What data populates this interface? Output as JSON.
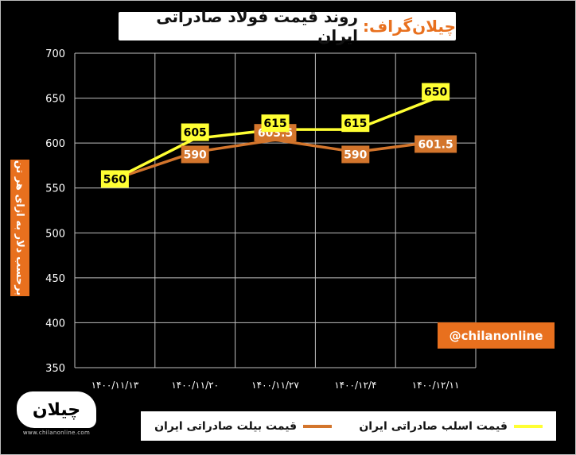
{
  "title": {
    "brand": "چیلان‌گراف:",
    "text": "روند قیمت فولاد صادراتی ایران"
  },
  "watermark": {
    "handle": "@chilanonline",
    "logo_text": "چیلان",
    "url": "www.chilanonline.com"
  },
  "colors": {
    "accent_orange": "#e8701e",
    "series_yellow": "#ffff33",
    "series_orange": "#d3752c",
    "background": "#000000",
    "grid": "#bfbfbf"
  },
  "chart_data": {
    "type": "line",
    "title": "روند قیمت فولاد صادراتی ایران",
    "ylabel": "برحسب دلار به ازای هر تن",
    "xlabel": "",
    "categories": [
      "۱۴۰۰/۱۱/۱۳",
      "۱۴۰۰/۱۱/۲۰",
      "۱۴۰۰/۱۱/۲۷",
      "۱۴۰۰/۱۲/۴",
      "۱۴۰۰/۱۲/۱۱"
    ],
    "ylim": [
      350,
      700
    ],
    "yticks": [
      350,
      400,
      450,
      500,
      550,
      600,
      650,
      700
    ],
    "grid": true,
    "legend_position": "bottom",
    "series": [
      {
        "name": "قیمت اسلب صادراتی ایران",
        "values": [
          560,
          605,
          615,
          615,
          650
        ],
        "labels": [
          "560",
          "605",
          "615",
          "615",
          "650"
        ],
        "color": "#ffff33"
      },
      {
        "name": "قیمت بیلت صادراتی ایران",
        "values": [
          560,
          590,
          603.5,
          590,
          601.5
        ],
        "labels": [
          "",
          "590",
          "603.5",
          "590",
          "601.5"
        ],
        "color": "#d3752c"
      }
    ]
  }
}
